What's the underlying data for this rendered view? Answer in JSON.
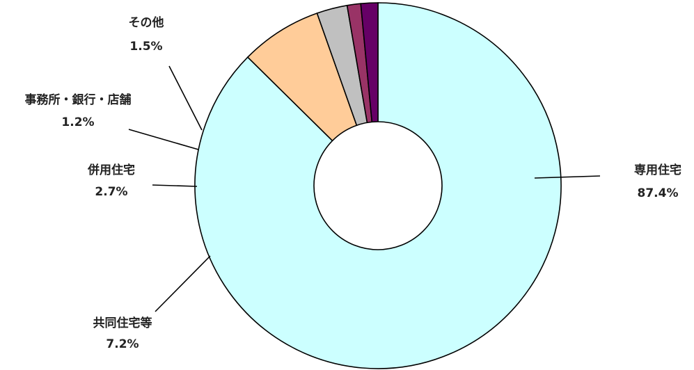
{
  "chart_data": {
    "type": "pie",
    "variant": "donut",
    "title": "",
    "slices": [
      {
        "name": "専用住宅",
        "value": 87.4,
        "value_label": "87.4%",
        "color": "#CCFFFF"
      },
      {
        "name": "共同住宅等",
        "value": 7.2,
        "value_label": "7.2%",
        "color": "#FFCC99"
      },
      {
        "name": "併用住宅",
        "value": 2.7,
        "value_label": "2.7%",
        "color": "#C0C0C0"
      },
      {
        "name": "事務所・銀行・店舗",
        "value": 1.2,
        "value_label": "1.2%",
        "color": "#993366"
      },
      {
        "name": "その他",
        "value": 1.5,
        "value_label": "1.5%",
        "color": "#660066"
      }
    ],
    "start_direction": "top, clockwise",
    "legend": "none (leader-line labels)"
  }
}
